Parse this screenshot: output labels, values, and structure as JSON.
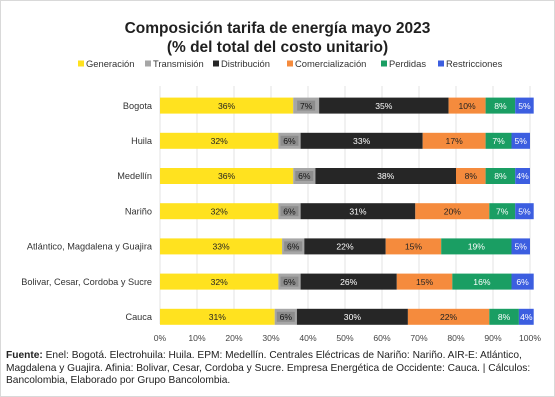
{
  "chart_data": {
    "type": "bar",
    "stacked": true,
    "orientation": "horizontal",
    "title": "Composición tarifa de energía mayo 2023",
    "subtitle": "(% del total del costo unitario)",
    "legend_position": "top",
    "xlim": [
      0,
      100
    ],
    "x_ticks": [
      "0%",
      "10%",
      "20%",
      "30%",
      "40%",
      "50%",
      "60%",
      "70%",
      "80%",
      "90%",
      "100%"
    ],
    "categories": [
      "Bogota",
      "Huila",
      "Medellín",
      "Nariño",
      "Atlántico, Magdalena y Guajira",
      "Bolivar, Cesar, Cordoba y Sucre",
      "Cauca"
    ],
    "series": [
      {
        "name": "Generación",
        "color": "#ffe21f",
        "values": [
          36,
          32,
          36,
          32,
          33,
          32,
          31
        ]
      },
      {
        "name": "Transmisión",
        "color": "#a6a6a6",
        "values": [
          7,
          6,
          6,
          6,
          6,
          6,
          6
        ]
      },
      {
        "name": "Distribución",
        "color": "#262626",
        "values": [
          35,
          33,
          38,
          31,
          22,
          26,
          30
        ]
      },
      {
        "name": "Comercialización",
        "color": "#f58b3d",
        "values": [
          10,
          17,
          8,
          20,
          15,
          15,
          22
        ]
      },
      {
        "name": "Perdidas",
        "color": "#1a9e63",
        "values": [
          8,
          7,
          8,
          7,
          19,
          16,
          8
        ]
      },
      {
        "name": "Restricciones",
        "color": "#3c5ee0",
        "values": [
          5,
          5,
          4,
          5,
          5,
          6,
          4
        ]
      }
    ]
  },
  "source": {
    "label": "Fuente:",
    "text": "Enel: Bogotá. Electrohuila: Huila. EPM: Medellín. Centrales Eléctricas de Nariño: Nariño. AIR-E: Atlántico, Magdalena y Guajira. Afinia: Bolivar, Cesar, Cordoba y Sucre. Empresa Energética de Occidente: Cauca. | Cálculos: Bancolombia, Elaborado por Grupo Bancolombia."
  }
}
